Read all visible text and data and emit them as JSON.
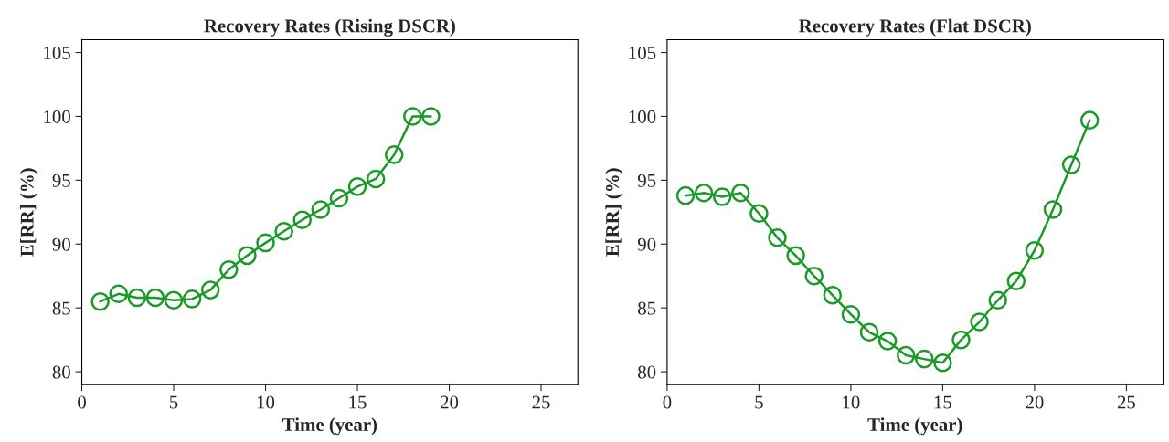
{
  "chart_data": [
    {
      "type": "line",
      "title": "Recovery Rates (Rising DSCR)",
      "xlabel": "Time (year)",
      "ylabel": "E[RR] (%)",
      "marker": "circle",
      "line_style": "solid",
      "grid": false,
      "xlim": [
        0,
        27
      ],
      "xticks": [
        0,
        5,
        10,
        15,
        20,
        25
      ],
      "ylim": [
        79,
        106
      ],
      "yticks": [
        80,
        85,
        90,
        95,
        100,
        105
      ],
      "x": [
        1,
        2,
        3,
        4,
        5,
        6,
        7,
        8,
        9,
        10,
        11,
        12,
        13,
        14,
        15,
        16,
        17,
        18,
        19
      ],
      "series": [
        {
          "color": "#1a9a28",
          "values": [
            85.5,
            86.1,
            85.8,
            85.8,
            85.6,
            85.7,
            86.4,
            88.0,
            89.1,
            90.1,
            91.0,
            91.9,
            92.7,
            93.6,
            94.5,
            95.1,
            97.0,
            100.0,
            100.0
          ]
        }
      ]
    },
    {
      "type": "line",
      "title": "Recovery Rates (Flat DSCR)",
      "xlabel": "Time (year)",
      "ylabel": "E[RR] (%)",
      "marker": "circle",
      "line_style": "solid",
      "grid": false,
      "xlim": [
        0,
        27
      ],
      "xticks": [
        0,
        5,
        10,
        15,
        20,
        25
      ],
      "ylim": [
        79,
        106
      ],
      "yticks": [
        80,
        85,
        90,
        95,
        100,
        105
      ],
      "x": [
        1,
        2,
        3,
        4,
        5,
        6,
        7,
        8,
        9,
        10,
        11,
        12,
        13,
        14,
        15,
        16,
        17,
        18,
        19,
        20,
        21,
        22,
        23
      ],
      "series": [
        {
          "color": "#1a9a28",
          "values": [
            93.8,
            94.0,
            93.7,
            94.0,
            92.4,
            90.5,
            89.1,
            87.5,
            86.0,
            84.5,
            83.1,
            82.4,
            81.3,
            81.0,
            80.7,
            82.5,
            83.9,
            85.6,
            87.1,
            89.5,
            92.7,
            96.2,
            99.7
          ]
        }
      ]
    }
  ]
}
